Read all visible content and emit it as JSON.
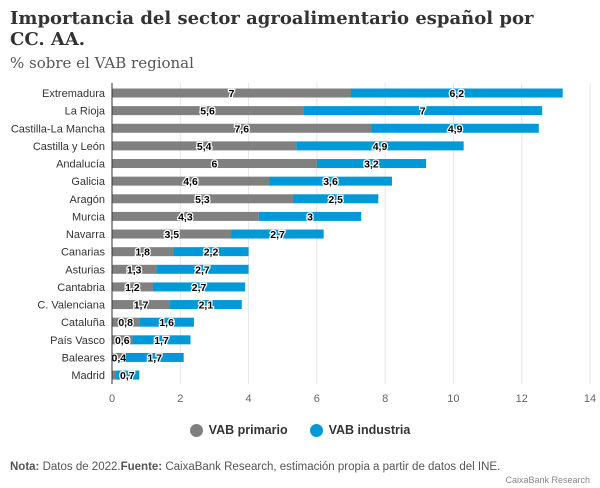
{
  "title": "Importancia del sector agroalimentario español por CC. AA.",
  "subtitle": "% sobre el VAB regional",
  "note": {
    "label": "Nota:",
    "text": " Datos de 2022.",
    "source_label": "Fuente:",
    "source_text": " CaixaBank Research, estimación propia a partir de datos del INE."
  },
  "credit": "CaixaBank Research",
  "chart_data": {
    "type": "bar",
    "orientation": "horizontal",
    "stacked": true,
    "categories": [
      "Extremadura",
      "La Rioja",
      "Castilla-La Mancha",
      "Castilla y León",
      "Andalucía",
      "Galicia",
      "Aragón",
      "Murcia",
      "Navarra",
      "Canarias",
      "Asturias",
      "Cantabria",
      "C. Valenciana",
      "Cataluña",
      "País Vasco",
      "Baleares",
      "Madrid"
    ],
    "series": [
      {
        "name": "VAB primario",
        "color": "#808080",
        "values": [
          7,
          5.6,
          7.6,
          5.4,
          6,
          4.6,
          5.3,
          4.3,
          3.5,
          1.8,
          1.3,
          1.2,
          1.7,
          0.8,
          0.6,
          0.4,
          0.1
        ]
      },
      {
        "name": "VAB industria",
        "color": "#0099d8",
        "values": [
          6.2,
          7,
          4.9,
          4.9,
          3.2,
          3.6,
          2.5,
          3,
          2.7,
          2.2,
          2.7,
          2.7,
          2.1,
          1.6,
          1.7,
          1.7,
          0.7
        ]
      }
    ],
    "xlim": [
      0,
      14
    ],
    "xticks": [
      0,
      2,
      4,
      6,
      8,
      10,
      12,
      14
    ],
    "grid": true,
    "legend": "bottom"
  }
}
